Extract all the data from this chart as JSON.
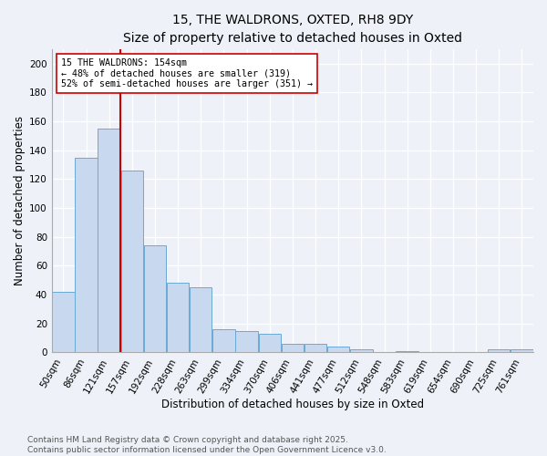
{
  "title": "15, THE WALDRONS, OXTED, RH8 9DY",
  "subtitle": "Size of property relative to detached houses in Oxted",
  "xlabel": "Distribution of detached houses by size in Oxted",
  "ylabel": "Number of detached properties",
  "bar_labels": [
    "50sqm",
    "86sqm",
    "121sqm",
    "157sqm",
    "192sqm",
    "228sqm",
    "263sqm",
    "299sqm",
    "334sqm",
    "370sqm",
    "406sqm",
    "441sqm",
    "477sqm",
    "512sqm",
    "548sqm",
    "583sqm",
    "619sqm",
    "654sqm",
    "690sqm",
    "725sqm",
    "761sqm"
  ],
  "bar_values": [
    42,
    135,
    155,
    126,
    74,
    48,
    45,
    16,
    15,
    13,
    6,
    6,
    4,
    2,
    0,
    1,
    0,
    0,
    0,
    2,
    2
  ],
  "bar_color": "#c8d9ef",
  "bar_edge_color": "#6aaad4",
  "vline_color": "#cc0000",
  "annotation_text": "15 THE WALDRONS: 154sqm\n← 48% of detached houses are smaller (319)\n52% of semi-detached houses are larger (351) →",
  "annotation_box_color": "#ffffff",
  "annotation_box_edge": "#cc0000",
  "ylim": [
    0,
    210
  ],
  "yticks": [
    0,
    20,
    40,
    60,
    80,
    100,
    120,
    140,
    160,
    180,
    200
  ],
  "footer": "Contains HM Land Registry data © Crown copyright and database right 2025.\nContains public sector information licensed under the Open Government Licence v3.0.",
  "bg_color": "#eef2f8",
  "title_fontsize": 10,
  "label_fontsize": 8.5,
  "tick_fontsize": 7.5,
  "footer_fontsize": 6.5
}
